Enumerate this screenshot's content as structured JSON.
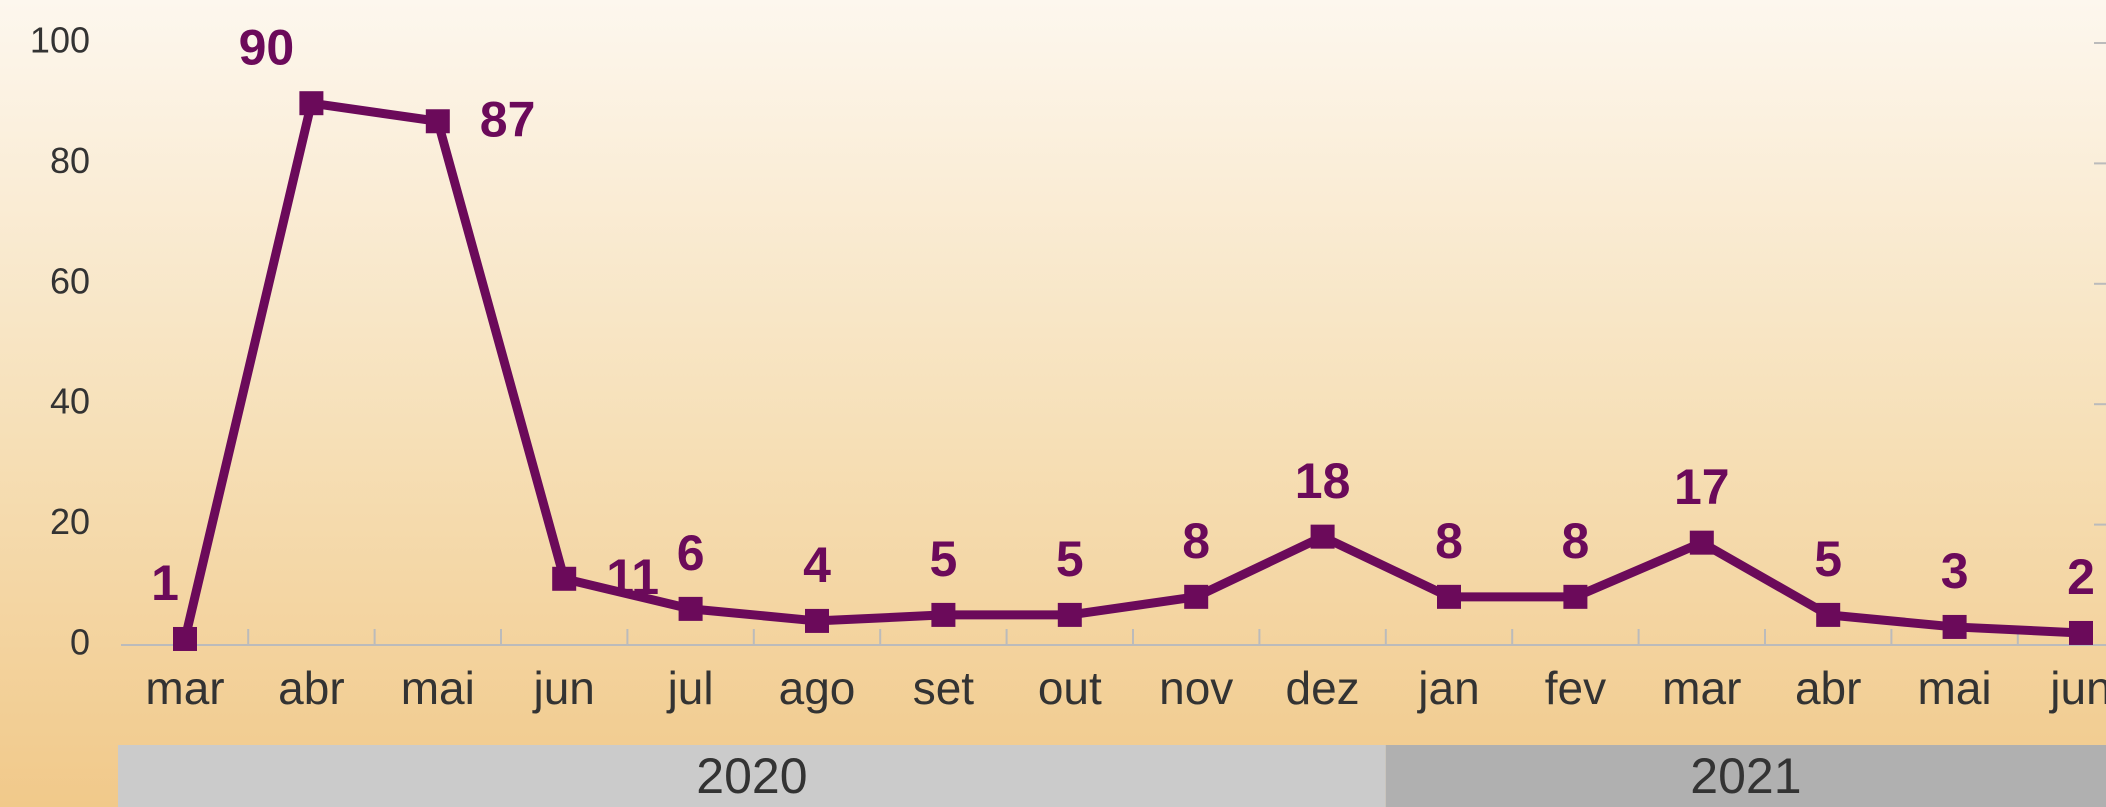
{
  "chart_data": {
    "type": "line",
    "categories": [
      "mar",
      "abr",
      "mai",
      "jun",
      "jul",
      "ago",
      "set",
      "out",
      "nov",
      "dez",
      "jan",
      "fev",
      "mar",
      "abr",
      "mai",
      "jun"
    ],
    "values": [
      1,
      90,
      87,
      11,
      6,
      4,
      5,
      5,
      8,
      18,
      8,
      8,
      17,
      5,
      3,
      2
    ],
    "color": "#6b0a5a",
    "x_groups": [
      {
        "label": "2020",
        "count": 10,
        "color": "#cbcbcb"
      },
      {
        "label": "2021",
        "count": 6,
        "color": "#b0b0b0"
      }
    ],
    "ylim": [
      0,
      100
    ],
    "yticks": [
      0,
      20,
      40,
      60,
      80,
      100
    ]
  }
}
